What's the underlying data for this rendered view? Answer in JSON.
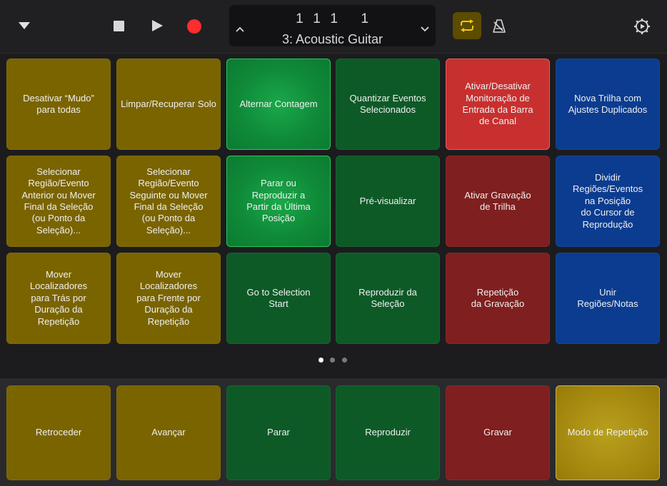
{
  "transport": {
    "position": "1  1  1     1",
    "track": "3: Acoustic Guitar"
  },
  "colors": {
    "record": "#ff2d2d",
    "cycle_active_bg": "#5c4c00",
    "cycle_active_icon": "#f5c518",
    "page_dot_active": "#ffffff",
    "page_dot_inactive": "#7a7a80"
  },
  "icons": {
    "menu": "chevron-down-triangle",
    "stop": "square",
    "play": "triangle-right",
    "record": "circle",
    "lcd_up": "chevron-up",
    "lcd_down": "chevron-down",
    "cycle": "cycle-arrows",
    "metronome": "metronome",
    "settings": "gear-play"
  },
  "grid": [
    [
      {
        "lines": [
          "Desativar “Mudo”",
          "para todas"
        ],
        "color": "yellow"
      },
      {
        "lines": [
          "Limpar/Recuperar Solo"
        ],
        "color": "yellow"
      },
      {
        "lines": [
          "Alternar Contagem"
        ],
        "color": "bright"
      },
      {
        "lines": [
          "Quantizar Eventos",
          "Selecionados"
        ],
        "color": "green"
      },
      {
        "lines": [
          "Ativar/Desativar",
          "Monitoração de",
          "Entrada da Barra",
          "de Canal"
        ],
        "color": "redb"
      },
      {
        "lines": [
          "Nova Trilha com",
          "Ajustes Duplicados"
        ],
        "color": "blue"
      }
    ],
    [
      {
        "lines": [
          "Selecionar",
          "Região/Evento",
          "Anterior ou Mover",
          "Final da Seleção",
          "(ou Ponto da",
          "Seleção)..."
        ],
        "color": "yellow"
      },
      {
        "lines": [
          "Selecionar",
          "Região/Evento",
          "Seguinte ou Mover",
          "Final da Seleção",
          "(ou Ponto da",
          "Seleção)..."
        ],
        "color": "yellow"
      },
      {
        "lines": [
          "Parar ou",
          "Reproduzir a",
          "Partir da Última",
          "Posição"
        ],
        "color": "bright"
      },
      {
        "lines": [
          "Pré-visualizar"
        ],
        "color": "green"
      },
      {
        "lines": [
          "Ativar Gravação",
          "de Trilha"
        ],
        "color": "red"
      },
      {
        "lines": [
          "Dividir",
          "Regiões/Eventos",
          "na Posição",
          "do Cursor de",
          "Reprodução"
        ],
        "color": "blue"
      }
    ],
    [
      {
        "lines": [
          "Mover",
          "Localizadores",
          "para Trás por",
          "Duração da",
          "Repetição"
        ],
        "color": "yellow"
      },
      {
        "lines": [
          "Mover",
          "Localizadores",
          "para Frente por",
          "Duração da",
          "Repetição"
        ],
        "color": "yellow"
      },
      {
        "lines": [
          "Go to Selection",
          "Start"
        ],
        "color": "green"
      },
      {
        "lines": [
          "Reproduzir da",
          "Seleção"
        ],
        "color": "green"
      },
      {
        "lines": [
          "Repetição",
          "da Gravação"
        ],
        "color": "red"
      },
      {
        "lines": [
          "Unir",
          "Regiões/Notas"
        ],
        "color": "blue"
      }
    ]
  ],
  "bottom": [
    {
      "label": "Retroceder",
      "color": "yellow"
    },
    {
      "label": "Avançar",
      "color": "yellow"
    },
    {
      "label": "Parar",
      "color": "green"
    },
    {
      "label": "Reproduzir",
      "color": "green"
    },
    {
      "label": "Gravar",
      "color": "red"
    },
    {
      "label": "Modo de Repetição",
      "color": "gold"
    }
  ],
  "pages": {
    "count": 3,
    "current": 1
  }
}
